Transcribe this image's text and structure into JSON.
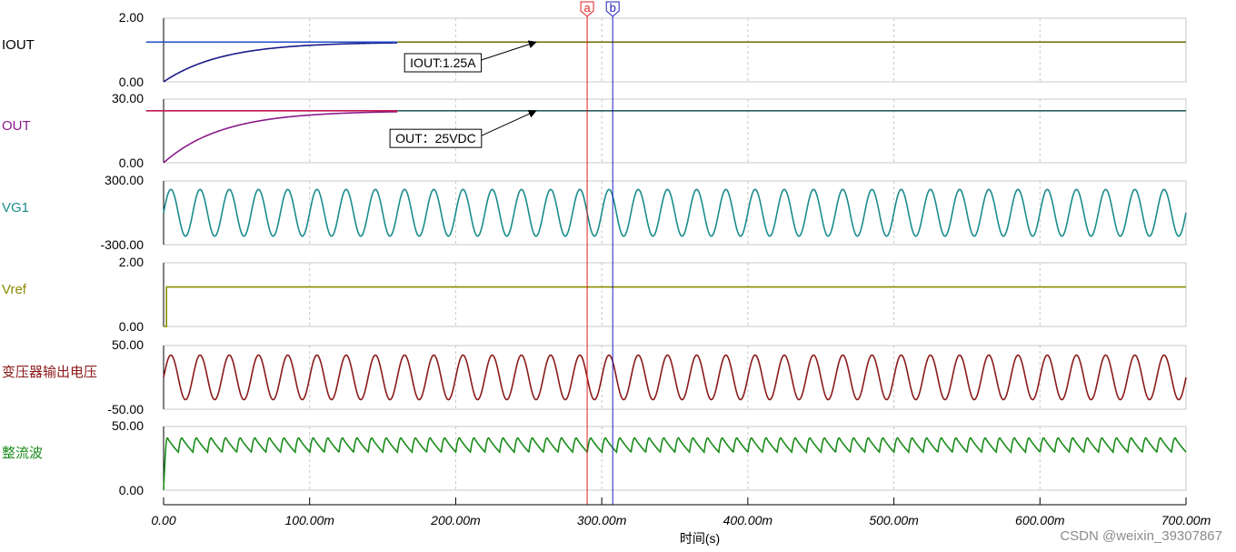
{
  "chart_data": {
    "type": "line",
    "title": "",
    "xlabel": "时间(s)",
    "x_unit": "s",
    "xlim": [
      0,
      0.7
    ],
    "x_ticks": [
      {
        "value": 0,
        "label": "0.00"
      },
      {
        "value": 0.1,
        "label": "100.00m"
      },
      {
        "value": 0.2,
        "label": "200.00m"
      },
      {
        "value": 0.3,
        "label": "300.00m"
      },
      {
        "value": 0.4,
        "label": "400.00m"
      },
      {
        "value": 0.5,
        "label": "500.00m"
      },
      {
        "value": 0.6,
        "label": "600.00m"
      },
      {
        "value": 0.7,
        "label": "700.00m"
      }
    ],
    "grid": true,
    "panels": [
      {
        "name": "IOUT",
        "label_color": "#000000",
        "ylim": [
          0,
          2
        ],
        "ytick_labels": [
          "2.00",
          "0.00"
        ],
        "series": [
          {
            "kind": "exp_rise",
            "final": 1.25,
            "tau": 0.04,
            "color": "#1a1a8a",
            "x_end": 0.16
          },
          {
            "kind": "const",
            "value": 1.25,
            "color": "#1e4bc8",
            "x_start": -0.012,
            "x_end": 0.16
          },
          {
            "kind": "const",
            "value": 1.25,
            "color": "#6b6b00",
            "x_start": 0.16,
            "x_end": 0.7
          }
        ],
        "annotation": {
          "text": "IOUT:1.25A",
          "x": 0.165,
          "y": 0.6,
          "target_x": 0.255,
          "target_y": 1.25
        }
      },
      {
        "name": "OUT",
        "label_color": "#8b1a8b",
        "ylim": [
          0,
          30
        ],
        "ytick_labels": [
          "30.00",
          "0.00"
        ],
        "series": [
          {
            "kind": "exp_rise",
            "final": 24.5,
            "tau": 0.04,
            "color": "#8b1a8b",
            "x_end": 0.16
          },
          {
            "kind": "const",
            "value": 24.5,
            "color": "#c01850",
            "x_start": -0.012,
            "x_end": 0.16
          },
          {
            "kind": "const",
            "value": 24.5,
            "color": "#2a6060",
            "x_start": 0.16,
            "x_end": 0.7
          }
        ],
        "annotation": {
          "text": "OUT：25VDC",
          "x": 0.155,
          "y": 11.5,
          "target_x": 0.255,
          "target_y": 24.5
        }
      },
      {
        "name": "VG1",
        "label_color": "#1a8c8c",
        "ylim": [
          -300,
          300
        ],
        "ytick_labels": [
          "300.00",
          "-300.00"
        ],
        "series": [
          {
            "kind": "sine",
            "amplitude": 220,
            "frequency": 50,
            "phase_deg": 0,
            "color": "#1a8c8c"
          }
        ]
      },
      {
        "name": "Vref",
        "label_color": "#8c8c00",
        "ylim": [
          0,
          2
        ],
        "ytick_labels": [
          "2.00",
          "0.00"
        ],
        "series": [
          {
            "kind": "step",
            "value": 1.24,
            "t0": 0.002,
            "color": "#8c8c00"
          }
        ]
      },
      {
        "name": "变压器输出电压",
        "label_color": "#8b1a1a",
        "ylim": [
          -50,
          50
        ],
        "ytick_labels": [
          "50.00",
          "-50.00"
        ],
        "series": [
          {
            "kind": "sine",
            "amplitude": 35,
            "frequency": 50,
            "phase_deg": 0,
            "color": "#8b1a1a"
          }
        ]
      },
      {
        "name": "整流波",
        "label_color": "#1a8c1a",
        "ylim": [
          0,
          50
        ],
        "ytick_labels": [
          "50.00",
          "0.00"
        ],
        "series": [
          {
            "kind": "rectified",
            "peak": 41,
            "min": 27,
            "frequency": 100,
            "color": "#1a8c1a"
          }
        ]
      }
    ],
    "cursors": [
      {
        "name": "a",
        "x": 0.29,
        "color": "#e02020"
      },
      {
        "name": "b",
        "x": 0.3075,
        "color": "#2020c0"
      }
    ]
  },
  "watermark": "CSDN @weixin_39307867"
}
